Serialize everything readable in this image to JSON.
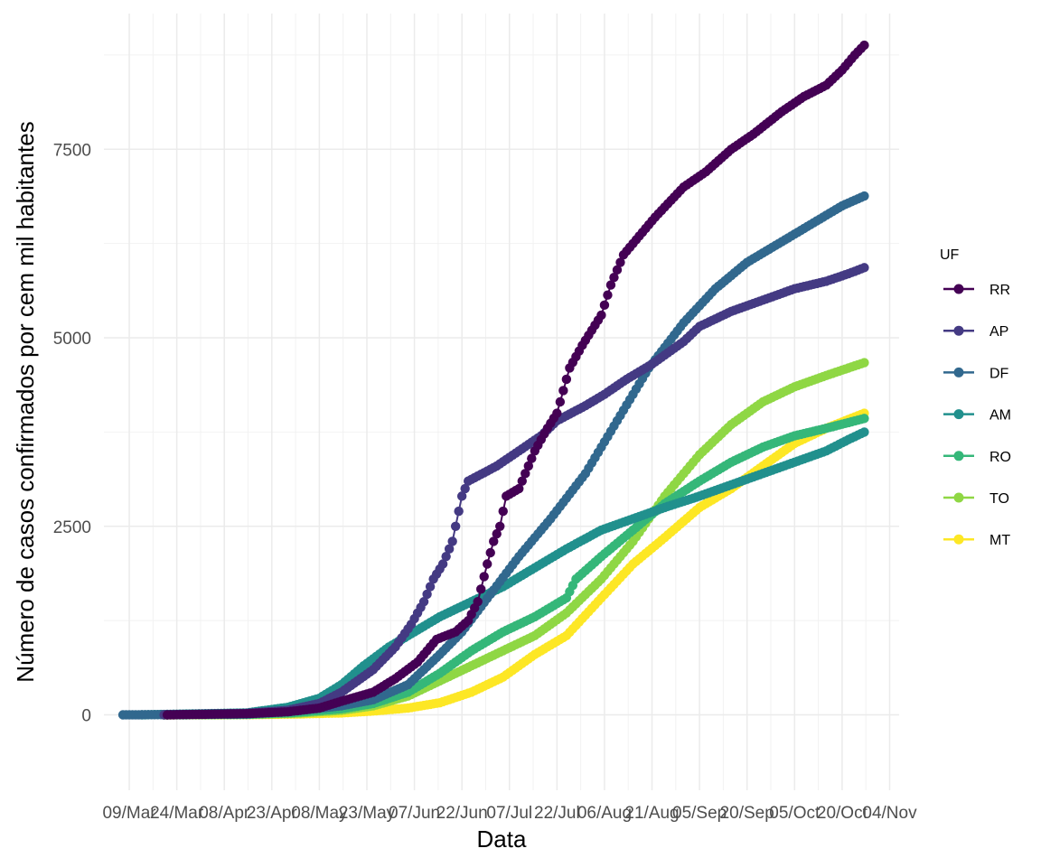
{
  "chart_data": {
    "type": "line",
    "xlabel": "Data",
    "ylabel": "Número de casos confirmados por cem mil habitantes",
    "legend_title": "UF",
    "legend_position": "right",
    "grid": true,
    "xlim": [
      "2020-03-01",
      "2020-11-07"
    ],
    "ylim": [
      -1000,
      9300
    ],
    "y_ticks": [
      0,
      2500,
      5000,
      7500
    ],
    "y_tick_labels": [
      "0",
      "2500",
      "5000",
      "7500"
    ],
    "x_ticks": [
      "2020-03-09",
      "2020-03-24",
      "2020-04-08",
      "2020-04-23",
      "2020-05-08",
      "2020-05-23",
      "2020-06-07",
      "2020-06-22",
      "2020-07-07",
      "2020-07-22",
      "2020-08-06",
      "2020-08-21",
      "2020-09-05",
      "2020-09-20",
      "2020-10-05",
      "2020-10-20",
      "2020-11-04"
    ],
    "x_tick_labels": [
      "09/Mar",
      "24/Mar",
      "08/Apr",
      "23/Apr",
      "08/May",
      "23/May",
      "07/Jun",
      "22/Jun",
      "07/Jul",
      "22/Jul",
      "06/Aug",
      "21/Aug",
      "05/Sep",
      "20/Sep",
      "05/Oct",
      "20/Oct",
      "04/Nov"
    ],
    "series": [
      {
        "name": "RR",
        "color": "#440154",
        "start": "2020-03-21",
        "end": "2020-10-27",
        "points": [
          [
            "2020-03-21",
            0
          ],
          [
            "2020-04-15",
            15
          ],
          [
            "2020-04-28",
            40
          ],
          [
            "2020-05-08",
            90
          ],
          [
            "2020-05-15",
            180
          ],
          [
            "2020-05-25",
            300
          ],
          [
            "2020-06-01",
            480
          ],
          [
            "2020-06-08",
            700
          ],
          [
            "2020-06-14",
            1000
          ],
          [
            "2020-06-20",
            1100
          ],
          [
            "2020-06-24",
            1250
          ],
          [
            "2020-06-27",
            1500
          ],
          [
            "2020-06-30",
            2000
          ],
          [
            "2020-07-02",
            2300
          ],
          [
            "2020-07-04",
            2500
          ],
          [
            "2020-07-06",
            2900
          ],
          [
            "2020-07-10",
            3000
          ],
          [
            "2020-07-15",
            3500
          ],
          [
            "2020-07-19",
            3800
          ],
          [
            "2020-07-22",
            4000
          ],
          [
            "2020-07-26",
            4600
          ],
          [
            "2020-07-30",
            4900
          ],
          [
            "2020-08-05",
            5300
          ],
          [
            "2020-08-08",
            5700
          ],
          [
            "2020-08-12",
            6100
          ],
          [
            "2020-08-16",
            6300
          ],
          [
            "2020-08-22",
            6600
          ],
          [
            "2020-08-31",
            7000
          ],
          [
            "2020-09-07",
            7200
          ],
          [
            "2020-09-15",
            7500
          ],
          [
            "2020-09-22",
            7700
          ],
          [
            "2020-10-01",
            8000
          ],
          [
            "2020-10-08",
            8200
          ],
          [
            "2020-10-15",
            8350
          ],
          [
            "2020-10-20",
            8550
          ],
          [
            "2020-10-24",
            8750
          ],
          [
            "2020-10-27",
            8880
          ]
        ]
      },
      {
        "name": "AP",
        "color": "#443a83",
        "start": "2020-03-20",
        "end": "2020-10-27",
        "points": [
          [
            "2020-03-20",
            0
          ],
          [
            "2020-04-15",
            20
          ],
          [
            "2020-04-28",
            60
          ],
          [
            "2020-05-08",
            150
          ],
          [
            "2020-05-15",
            300
          ],
          [
            "2020-05-25",
            600
          ],
          [
            "2020-06-01",
            900
          ],
          [
            "2020-06-06",
            1200
          ],
          [
            "2020-06-10",
            1500
          ],
          [
            "2020-06-13",
            1800
          ],
          [
            "2020-06-16",
            2000
          ],
          [
            "2020-06-19",
            2300
          ],
          [
            "2020-06-20",
            2500
          ],
          [
            "2020-06-22",
            2900
          ],
          [
            "2020-06-24",
            3100
          ],
          [
            "2020-07-03",
            3300
          ],
          [
            "2020-07-10",
            3500
          ],
          [
            "2020-07-17",
            3700
          ],
          [
            "2020-07-22",
            3900
          ],
          [
            "2020-07-31",
            4100
          ],
          [
            "2020-08-06",
            4250
          ],
          [
            "2020-08-13",
            4450
          ],
          [
            "2020-08-21",
            4650
          ],
          [
            "2020-08-31",
            4950
          ],
          [
            "2020-09-05",
            5150
          ],
          [
            "2020-09-15",
            5350
          ],
          [
            "2020-09-25",
            5500
          ],
          [
            "2020-10-05",
            5650
          ],
          [
            "2020-10-15",
            5750
          ],
          [
            "2020-10-22",
            5850
          ],
          [
            "2020-10-27",
            5930
          ]
        ]
      },
      {
        "name": "DF",
        "color": "#31688e",
        "start": "2020-03-07",
        "end": "2020-10-27",
        "points": [
          [
            "2020-03-07",
            0
          ],
          [
            "2020-04-15",
            10
          ],
          [
            "2020-04-30",
            50
          ],
          [
            "2020-05-15",
            120
          ],
          [
            "2020-05-25",
            200
          ],
          [
            "2020-06-05",
            400
          ],
          [
            "2020-06-15",
            800
          ],
          [
            "2020-06-22",
            1100
          ],
          [
            "2020-07-01",
            1600
          ],
          [
            "2020-07-10",
            2100
          ],
          [
            "2020-07-20",
            2600
          ],
          [
            "2020-07-31",
            3200
          ],
          [
            "2020-08-10",
            3900
          ],
          [
            "2020-08-20",
            4600
          ],
          [
            "2020-08-31",
            5200
          ],
          [
            "2020-09-10",
            5650
          ],
          [
            "2020-09-20",
            6000
          ],
          [
            "2020-09-30",
            6250
          ],
          [
            "2020-10-10",
            6500
          ],
          [
            "2020-10-20",
            6750
          ],
          [
            "2020-10-27",
            6880
          ]
        ]
      },
      {
        "name": "AM",
        "color": "#21908d",
        "start": "2020-03-13",
        "end": "2020-10-27",
        "points": [
          [
            "2020-03-13",
            0
          ],
          [
            "2020-04-15",
            25
          ],
          [
            "2020-04-28",
            100
          ],
          [
            "2020-05-08",
            220
          ],
          [
            "2020-05-15",
            400
          ],
          [
            "2020-05-22",
            650
          ],
          [
            "2020-05-30",
            900
          ],
          [
            "2020-06-07",
            1100
          ],
          [
            "2020-06-15",
            1300
          ],
          [
            "2020-06-25",
            1500
          ],
          [
            "2020-07-05",
            1700
          ],
          [
            "2020-07-15",
            1950
          ],
          [
            "2020-07-25",
            2200
          ],
          [
            "2020-08-05",
            2450
          ],
          [
            "2020-08-15",
            2600
          ],
          [
            "2020-08-25",
            2750
          ],
          [
            "2020-09-05",
            2900
          ],
          [
            "2020-09-15",
            3050
          ],
          [
            "2020-09-25",
            3200
          ],
          [
            "2020-10-05",
            3350
          ],
          [
            "2020-10-15",
            3500
          ],
          [
            "2020-10-22",
            3650
          ],
          [
            "2020-10-27",
            3750
          ]
        ]
      },
      {
        "name": "RO",
        "color": "#35b779",
        "start": "2020-03-20",
        "end": "2020-10-27",
        "points": [
          [
            "2020-03-20",
            0
          ],
          [
            "2020-04-15",
            5
          ],
          [
            "2020-04-30",
            30
          ],
          [
            "2020-05-15",
            80
          ],
          [
            "2020-05-25",
            150
          ],
          [
            "2020-06-05",
            300
          ],
          [
            "2020-06-15",
            550
          ],
          [
            "2020-06-25",
            850
          ],
          [
            "2020-07-05",
            1100
          ],
          [
            "2020-07-15",
            1300
          ],
          [
            "2020-07-25",
            1550
          ],
          [
            "2020-07-28",
            1800
          ],
          [
            "2020-08-05",
            2100
          ],
          [
            "2020-08-15",
            2450
          ],
          [
            "2020-08-25",
            2800
          ],
          [
            "2020-09-05",
            3100
          ],
          [
            "2020-09-15",
            3350
          ],
          [
            "2020-09-25",
            3550
          ],
          [
            "2020-10-05",
            3700
          ],
          [
            "2020-10-15",
            3800
          ],
          [
            "2020-10-27",
            3930
          ]
        ]
      },
      {
        "name": "TO",
        "color": "#8fd744",
        "start": "2020-03-20",
        "end": "2020-10-27",
        "points": [
          [
            "2020-03-20",
            0
          ],
          [
            "2020-04-15",
            5
          ],
          [
            "2020-04-30",
            20
          ],
          [
            "2020-05-15",
            60
          ],
          [
            "2020-05-25",
            120
          ],
          [
            "2020-06-05",
            250
          ],
          [
            "2020-06-15",
            450
          ],
          [
            "2020-06-25",
            650
          ],
          [
            "2020-07-05",
            850
          ],
          [
            "2020-07-15",
            1050
          ],
          [
            "2020-07-25",
            1350
          ],
          [
            "2020-08-05",
            1800
          ],
          [
            "2020-08-15",
            2300
          ],
          [
            "2020-08-25",
            2900
          ],
          [
            "2020-09-05",
            3450
          ],
          [
            "2020-09-15",
            3850
          ],
          [
            "2020-09-25",
            4150
          ],
          [
            "2020-10-05",
            4350
          ],
          [
            "2020-10-15",
            4500
          ],
          [
            "2020-10-27",
            4670
          ]
        ]
      },
      {
        "name": "MT",
        "color": "#fde725",
        "start": "2020-03-20",
        "end": "2020-10-27",
        "points": [
          [
            "2020-03-20",
            0
          ],
          [
            "2020-04-15",
            2
          ],
          [
            "2020-04-30",
            10
          ],
          [
            "2020-05-15",
            25
          ],
          [
            "2020-05-25",
            50
          ],
          [
            "2020-06-05",
            90
          ],
          [
            "2020-06-15",
            160
          ],
          [
            "2020-06-25",
            300
          ],
          [
            "2020-07-05",
            500
          ],
          [
            "2020-07-15",
            800
          ],
          [
            "2020-07-25",
            1050
          ],
          [
            "2020-08-05",
            1550
          ],
          [
            "2020-08-15",
            2000
          ],
          [
            "2020-08-25",
            2350
          ],
          [
            "2020-09-05",
            2750
          ],
          [
            "2020-09-15",
            3000
          ],
          [
            "2020-09-25",
            3300
          ],
          [
            "2020-10-05",
            3600
          ],
          [
            "2020-10-15",
            3800
          ],
          [
            "2020-10-27",
            4000
          ]
        ]
      }
    ]
  }
}
